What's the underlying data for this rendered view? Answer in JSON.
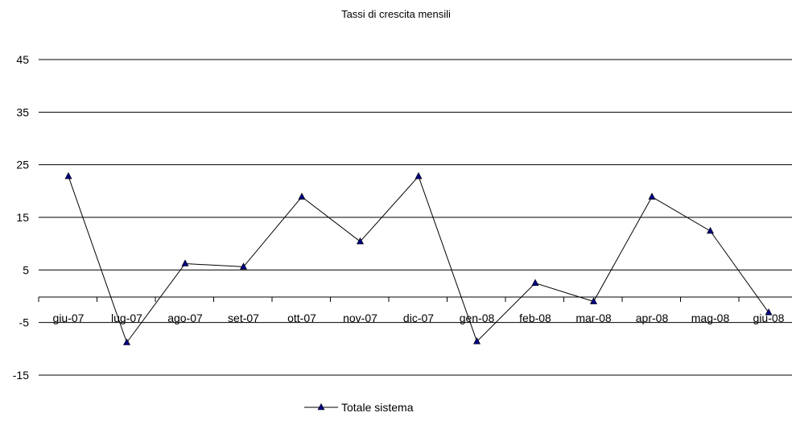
{
  "chart_data": {
    "type": "line",
    "title": "Tassi di crescita mensili",
    "xlabel": "",
    "ylabel": "",
    "categories": [
      "giu-07",
      "lug-07",
      "ago-07",
      "set-07",
      "ott-07",
      "nov-07",
      "dic-07",
      "gen-08",
      "feb-08",
      "mar-08",
      "apr-08",
      "mag-08",
      "giu-08"
    ],
    "series": [
      {
        "name": "Totale sistema",
        "values": [
          22.8,
          -8.8,
          6.2,
          5.6,
          18.9,
          10.4,
          22.8,
          -8.6,
          2.5,
          -1.0,
          18.9,
          12.4,
          -3.1
        ],
        "color": "#000000",
        "marker": "triangle",
        "marker_color": "#000080"
      }
    ],
    "yticks": [
      -15,
      -5,
      5,
      15,
      25,
      35,
      45
    ],
    "ylim": [
      -15,
      45
    ],
    "grid": true,
    "legend_position": "bottom"
  }
}
